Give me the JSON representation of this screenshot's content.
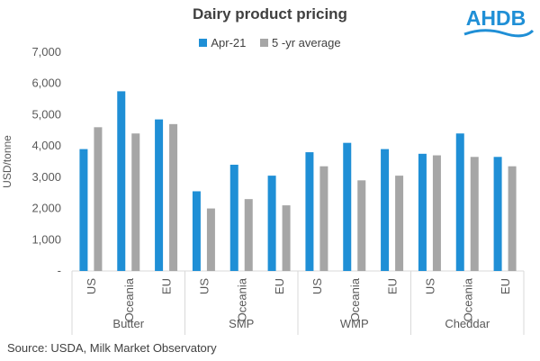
{
  "chart_data": {
    "type": "bar",
    "title": "Dairy product pricing",
    "ylabel": "USD/tonne",
    "xlabel": "",
    "ylim": [
      0,
      7000
    ],
    "yticks": [
      0,
      1000,
      2000,
      3000,
      4000,
      5000,
      6000,
      7000
    ],
    "ytick_labels": [
      "-",
      "1,000",
      "2,000",
      "3,000",
      "4,000",
      "5,000",
      "6,000",
      "7,000"
    ],
    "grid": false,
    "legend_position": "top",
    "groups": [
      {
        "name": "Butter",
        "categories": [
          "US",
          "Oceania",
          "EU"
        ]
      },
      {
        "name": "SMP",
        "categories": [
          "US",
          "Oceania",
          "EU"
        ]
      },
      {
        "name": "WMP",
        "categories": [
          "US",
          "Oceania",
          "EU"
        ]
      },
      {
        "name": "Cheddar",
        "categories": [
          "US",
          "Oceania",
          "EU"
        ]
      }
    ],
    "series": [
      {
        "name": "Apr-21",
        "color": "#1f8fd6",
        "values": [
          3900,
          5750,
          4850,
          2550,
          3400,
          3050,
          3800,
          4100,
          3900,
          3750,
          4400,
          3650
        ]
      },
      {
        "name": "5 -yr average",
        "color": "#a6a6a6",
        "values": [
          4600,
          4400,
          4700,
          2000,
          2300,
          2100,
          3350,
          2900,
          3050,
          3700,
          3650,
          3350
        ]
      }
    ]
  },
  "logo": {
    "text": "AHDB",
    "color": "#1f8fd6"
  },
  "source": "Source: USDA, Milk Market Observatory"
}
